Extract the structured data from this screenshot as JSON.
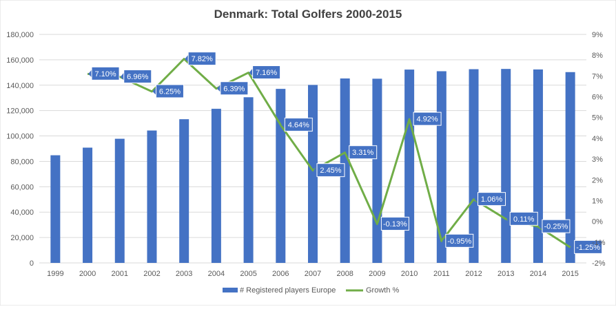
{
  "chart_data": {
    "type": "bar",
    "title": "Denmark: Total Golfers 2000-2015",
    "categories": [
      "1999",
      "2000",
      "2001",
      "2002",
      "2003",
      "2004",
      "2005",
      "2006",
      "2007",
      "2008",
      "2009",
      "2010",
      "2011",
      "2012",
      "2013",
      "2014",
      "2015"
    ],
    "series": [
      {
        "name": "# Registered players Europe",
        "type": "bar",
        "axis": "left",
        "color": "#4472C4",
        "values": [
          84800,
          90800,
          97800,
          104300,
          113200,
          121400,
          130500,
          137100,
          140200,
          145300,
          145100,
          152300,
          151000,
          152600,
          152800,
          152400,
          150300
        ]
      },
      {
        "name": "Growth %",
        "type": "line",
        "axis": "right",
        "color": "#70AD47",
        "values": [
          null,
          7.1,
          6.96,
          6.25,
          7.82,
          6.39,
          7.16,
          4.64,
          2.45,
          3.31,
          -0.13,
          4.92,
          -0.95,
          1.06,
          0.11,
          -0.25,
          -1.25
        ],
        "labels": [
          null,
          "7.10%",
          "6.96%",
          "6.25%",
          "7.82%",
          "6.39%",
          "7.16%",
          "4.64%",
          "2.45%",
          "3.31%",
          "-0.13%",
          "4.92%",
          "-0.95%",
          "1.06%",
          "0.11%",
          "-0.25%",
          "-1.25%"
        ]
      }
    ],
    "left_axis": {
      "min": 0,
      "max": 180000,
      "step": 20000,
      "tick_labels": [
        "0",
        "20,000",
        "40,000",
        "60,000",
        "80,000",
        "100,000",
        "120,000",
        "140,000",
        "160,000",
        "180,000"
      ]
    },
    "right_axis": {
      "min": -2,
      "max": 9,
      "step": 1,
      "tick_labels": [
        "-2%",
        "-1%",
        "0%",
        "1%",
        "2%",
        "3%",
        "4%",
        "5%",
        "6%",
        "7%",
        "8%",
        "9%"
      ]
    },
    "grid": true,
    "legend_position": "bottom",
    "label_color": "#4472C4"
  }
}
